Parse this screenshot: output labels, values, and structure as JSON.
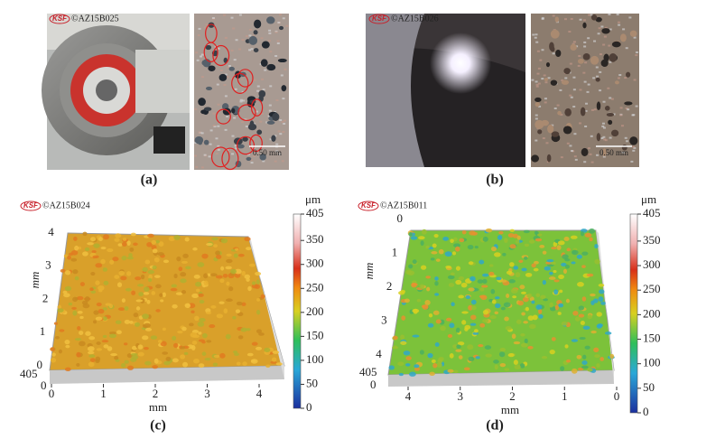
{
  "panels": [
    {
      "label": "(a)",
      "logo": "KSF",
      "watermark": "©AZ15B025",
      "scale_bar": "0.50 mm"
    },
    {
      "label": "(b)",
      "logo": "KSF",
      "watermark": "©AZ15B026",
      "scale_bar": "0.50 mm"
    },
    {
      "label": "(c)",
      "logo": "KSF",
      "watermark": "©AZ15B024",
      "colorbar": {
        "unit": "μm",
        "ticks": [
          405,
          350,
          300,
          250,
          200,
          150,
          100,
          50,
          0
        ]
      },
      "x_axis": {
        "label": "mm",
        "ticks": [
          0,
          1,
          2,
          3,
          4
        ]
      },
      "y_axis": {
        "label": "mm",
        "ticks": [
          0,
          1,
          2,
          3,
          4
        ]
      },
      "z_ticks": [
        405,
        0
      ]
    },
    {
      "label": "(d)",
      "logo": "KSF",
      "watermark": "©AZ15B011",
      "colorbar": {
        "unit": "μm",
        "ticks": [
          405,
          350,
          300,
          250,
          200,
          150,
          100,
          50,
          0
        ]
      },
      "x_axis": {
        "label": "mm",
        "ticks": [
          4,
          3,
          2,
          1,
          0
        ]
      },
      "y_axis": {
        "label": "mm",
        "ticks": [
          0,
          1,
          2,
          3,
          4
        ]
      },
      "z_ticks": [
        405,
        0
      ]
    }
  ]
}
